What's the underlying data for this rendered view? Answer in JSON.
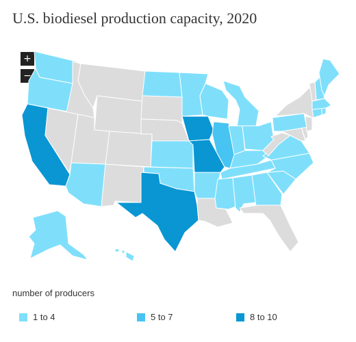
{
  "title": "U.S. biodiesel production capacity, 2020",
  "zoom": {
    "in_label": "+",
    "out_label": "−"
  },
  "colors": {
    "none": "#dcdcdc",
    "low": "#7fdffb",
    "mid": "#48c4f2",
    "high": "#0996d3"
  },
  "legend": {
    "title": "number of producers",
    "items": [
      {
        "label": "1 to 4",
        "level": "low"
      },
      {
        "label": "5 to 7",
        "level": "mid"
      },
      {
        "label": "8 to 10",
        "level": "high"
      }
    ]
  },
  "states": [
    {
      "id": "WA",
      "level": "low"
    },
    {
      "id": "OR",
      "level": "low"
    },
    {
      "id": "CA",
      "level": "high"
    },
    {
      "id": "ID",
      "level": "none"
    },
    {
      "id": "NV",
      "level": "none"
    },
    {
      "id": "MT",
      "level": "none"
    },
    {
      "id": "WY",
      "level": "none"
    },
    {
      "id": "UT",
      "level": "none"
    },
    {
      "id": "AZ",
      "level": "low"
    },
    {
      "id": "CO",
      "level": "none"
    },
    {
      "id": "NM",
      "level": "none"
    },
    {
      "id": "ND",
      "level": "low"
    },
    {
      "id": "SD",
      "level": "none"
    },
    {
      "id": "NE",
      "level": "none"
    },
    {
      "id": "KS",
      "level": "low"
    },
    {
      "id": "OK",
      "level": "low"
    },
    {
      "id": "TX",
      "level": "high"
    },
    {
      "id": "MN",
      "level": "low"
    },
    {
      "id": "IA",
      "level": "high"
    },
    {
      "id": "MO",
      "level": "high"
    },
    {
      "id": "AR",
      "level": "low"
    },
    {
      "id": "LA",
      "level": "none"
    },
    {
      "id": "WI",
      "level": "low"
    },
    {
      "id": "IL",
      "level": "mid"
    },
    {
      "id": "MI",
      "level": "low"
    },
    {
      "id": "IN",
      "level": "low"
    },
    {
      "id": "OH",
      "level": "low"
    },
    {
      "id": "KY",
      "level": "low"
    },
    {
      "id": "TN",
      "level": "low"
    },
    {
      "id": "MS",
      "level": "low"
    },
    {
      "id": "AL",
      "level": "low"
    },
    {
      "id": "GA",
      "level": "low"
    },
    {
      "id": "FL",
      "level": "none"
    },
    {
      "id": "SC",
      "level": "low"
    },
    {
      "id": "NC",
      "level": "low"
    },
    {
      "id": "VA",
      "level": "low"
    },
    {
      "id": "WV",
      "level": "none"
    },
    {
      "id": "MD",
      "level": "none"
    },
    {
      "id": "DE",
      "level": "none"
    },
    {
      "id": "NJ",
      "level": "none"
    },
    {
      "id": "PA",
      "level": "low"
    },
    {
      "id": "NY",
      "level": "none"
    },
    {
      "id": "CT",
      "level": "low"
    },
    {
      "id": "RI",
      "level": "low"
    },
    {
      "id": "MA",
      "level": "low"
    },
    {
      "id": "VT",
      "level": "none"
    },
    {
      "id": "NH",
      "level": "low"
    },
    {
      "id": "ME",
      "level": "low"
    },
    {
      "id": "AK",
      "level": "low"
    },
    {
      "id": "HI",
      "level": "low"
    }
  ]
}
